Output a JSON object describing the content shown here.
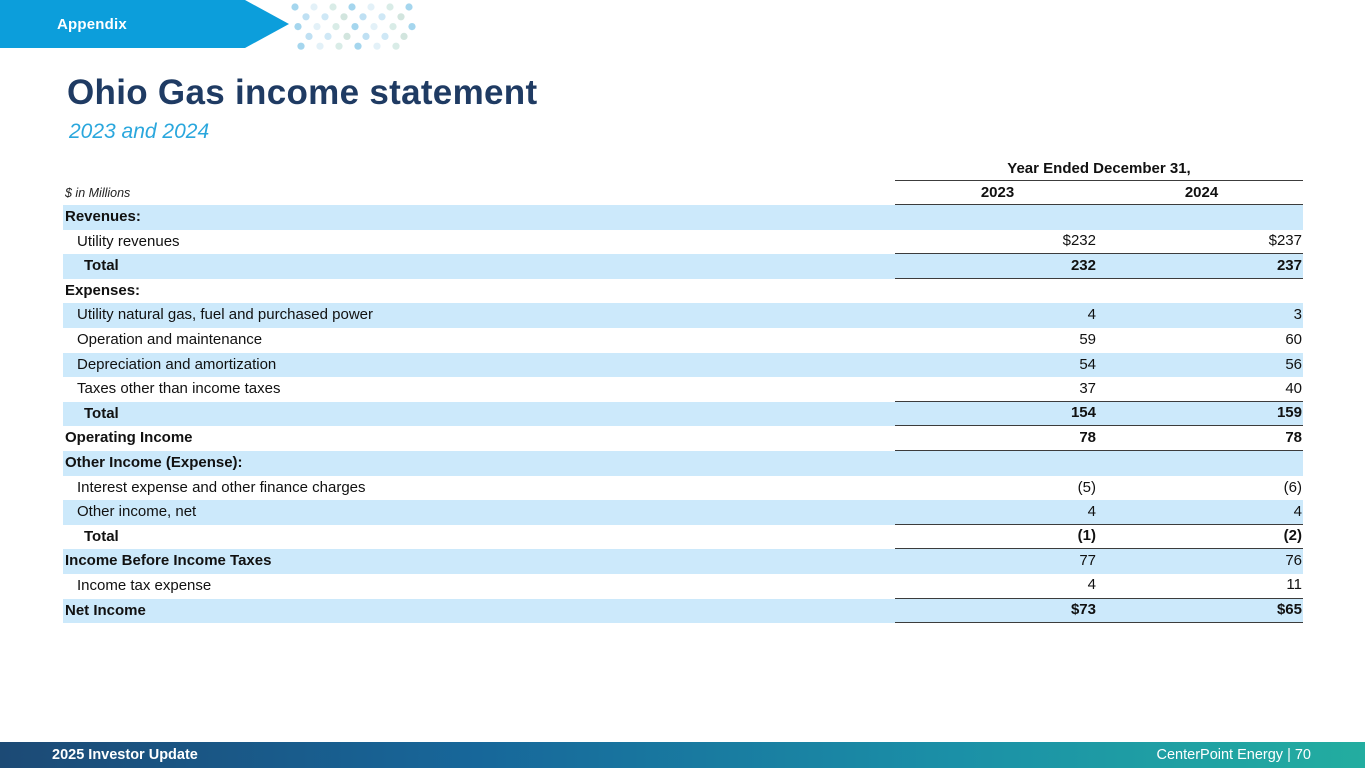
{
  "banner": {
    "label": "Appendix"
  },
  "title": "Ohio Gas income statement",
  "subtitle": "2023 and 2024",
  "table": {
    "units_note": "$ in Millions",
    "header_group": "Year Ended December 31,",
    "col_headers": [
      "2023",
      "2024"
    ],
    "rows": [
      {
        "label": "Revenues:",
        "v2023": "",
        "v2024": "",
        "indent": 0,
        "bold_label": true,
        "bold_values": false,
        "shaded": true,
        "line_below": false
      },
      {
        "label": "Utility revenues",
        "v2023": "$232",
        "v2024": "$237",
        "indent": 1,
        "bold_label": false,
        "bold_values": false,
        "shaded": false,
        "line_below": true
      },
      {
        "label": "Total",
        "v2023": "232",
        "v2024": "237",
        "indent": 2,
        "bold_label": true,
        "bold_values": true,
        "shaded": true,
        "line_below": true
      },
      {
        "label": "Expenses:",
        "v2023": "",
        "v2024": "",
        "indent": 0,
        "bold_label": true,
        "bold_values": false,
        "shaded": false,
        "line_below": false
      },
      {
        "label": "Utility natural gas, fuel and purchased power",
        "v2023": "4",
        "v2024": "3",
        "indent": 1,
        "bold_label": false,
        "bold_values": false,
        "shaded": true,
        "line_below": false
      },
      {
        "label": "Operation and maintenance",
        "v2023": "59",
        "v2024": "60",
        "indent": 1,
        "bold_label": false,
        "bold_values": false,
        "shaded": false,
        "line_below": false
      },
      {
        "label": "Depreciation and amortization",
        "v2023": "54",
        "v2024": "56",
        "indent": 1,
        "bold_label": false,
        "bold_values": false,
        "shaded": true,
        "line_below": false
      },
      {
        "label": "Taxes other than income taxes",
        "v2023": "37",
        "v2024": "40",
        "indent": 1,
        "bold_label": false,
        "bold_values": false,
        "shaded": false,
        "line_below": true
      },
      {
        "label": "Total",
        "v2023": "154",
        "v2024": "159",
        "indent": 2,
        "bold_label": true,
        "bold_values": true,
        "shaded": true,
        "line_below": true
      },
      {
        "label": "Operating Income",
        "v2023": "78",
        "v2024": "78",
        "indent": 0,
        "bold_label": true,
        "bold_values": true,
        "shaded": false,
        "line_below": true
      },
      {
        "label": "Other Income (Expense):",
        "v2023": "",
        "v2024": "",
        "indent": 0,
        "bold_label": true,
        "bold_values": false,
        "shaded": true,
        "line_below": false
      },
      {
        "label": "Interest expense and other finance charges",
        "v2023": "(5)",
        "v2024": "(6)",
        "indent": 1,
        "bold_label": false,
        "bold_values": false,
        "shaded": false,
        "line_below": false
      },
      {
        "label": "Other income, net",
        "v2023": "4",
        "v2024": "4",
        "indent": 1,
        "bold_label": false,
        "bold_values": false,
        "shaded": true,
        "line_below": true
      },
      {
        "label": "Total",
        "v2023": "(1)",
        "v2024": "(2)",
        "indent": 2,
        "bold_label": true,
        "bold_values": true,
        "shaded": false,
        "line_below": true
      },
      {
        "label": "Income Before Income Taxes",
        "v2023": "77",
        "v2024": "76",
        "indent": 0,
        "bold_label": true,
        "bold_values": false,
        "shaded": true,
        "line_below": false
      },
      {
        "label": "Income tax expense",
        "v2023": "4",
        "v2024": "11",
        "indent": 1,
        "bold_label": false,
        "bold_values": false,
        "shaded": false,
        "line_below": true
      },
      {
        "label": "Net Income",
        "v2023": "$73",
        "v2024": "$65",
        "indent": 0,
        "bold_label": true,
        "bold_values": true,
        "shaded": true,
        "line_below": true
      }
    ]
  },
  "footer": {
    "left": "2025 Investor Update",
    "right": "CenterPoint Energy | 70"
  },
  "colors": {
    "banner_blue": "#0c9edb",
    "title_navy": "#1f3b63",
    "subtitle_blue": "#2aa7dd",
    "row_shade_blue": "#cce9fb",
    "rule_line": "#3c3c3c",
    "footer_gradient_left": "#1c4a75",
    "footer_gradient_right": "#23ada0",
    "dot_palette": [
      "#a5d6ee",
      "#d2e5de",
      "#e3f1f8",
      "#bfe0f3",
      "#d9ece7",
      "#cfe8f6"
    ]
  }
}
